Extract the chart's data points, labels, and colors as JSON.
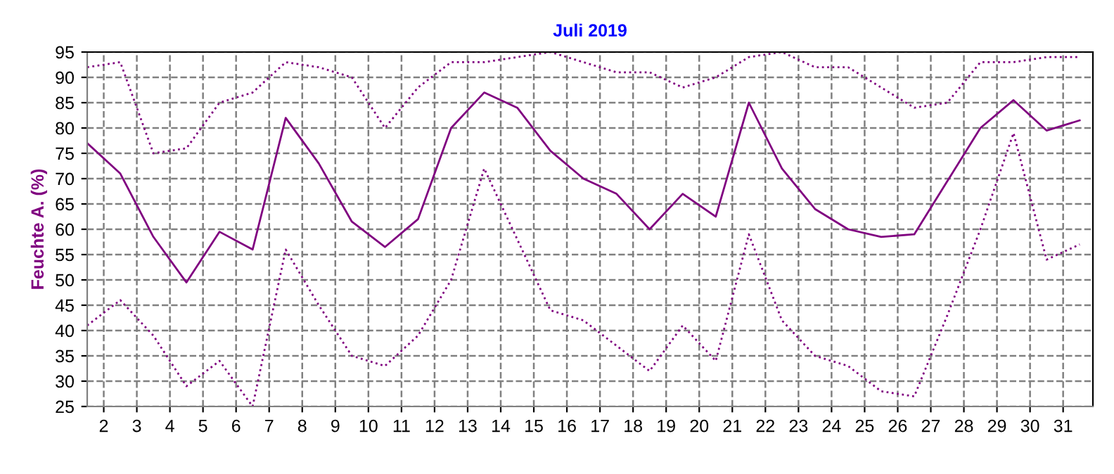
{
  "chart_data": {
    "type": "line",
    "title": "Juli 2019",
    "ylabel": "Feuchte A. (%)",
    "x": [
      1.5,
      2.5,
      3.5,
      4.5,
      5.5,
      6.5,
      7.5,
      8.5,
      9.5,
      10.5,
      11.5,
      12.5,
      13.5,
      14.5,
      15.5,
      16.5,
      17.5,
      18.5,
      19.5,
      20.5,
      21.5,
      22.5,
      23.5,
      24.5,
      25.5,
      26.5,
      27.5,
      28.5,
      29.5,
      30.5,
      31.5
    ],
    "series": [
      {
        "color": "#800080",
        "line_style": "dotted",
        "values": [
          92,
          93,
          75,
          76,
          85,
          87,
          93,
          92,
          90,
          80,
          88,
          93,
          93,
          94,
          95,
          93,
          91,
          91,
          88,
          90,
          94,
          95,
          92,
          92,
          88,
          84,
          85,
          93,
          93,
          94,
          94
        ]
      },
      {
        "color": "#800080",
        "line_style": "solid",
        "values": [
          77,
          71,
          58.5,
          49.5,
          59.5,
          56,
          82,
          73,
          61.5,
          56.5,
          62,
          80,
          87,
          84,
          75.5,
          70,
          67,
          60,
          67,
          62.5,
          85,
          72,
          64,
          60,
          58.5,
          59,
          69.5,
          80,
          85.5,
          79.5,
          81.5
        ]
      },
      {
        "color": "#800080",
        "line_style": "dotted",
        "values": [
          41,
          46,
          39,
          29,
          34,
          25,
          56,
          45,
          35,
          33,
          39,
          50,
          72,
          58,
          44,
          42,
          37,
          32,
          41,
          34,
          59,
          42,
          35,
          33,
          28,
          27,
          43,
          60,
          79,
          54,
          57
        ]
      }
    ],
    "xlim": [
      1.5,
      31.9
    ],
    "ylim": [
      25,
      95
    ],
    "xticks": [
      2,
      3,
      4,
      5,
      6,
      7,
      8,
      9,
      10,
      11,
      12,
      13,
      14,
      15,
      16,
      17,
      18,
      19,
      20,
      21,
      22,
      23,
      24,
      25,
      26,
      27,
      28,
      29,
      30,
      31
    ],
    "yticks": [
      25,
      30,
      35,
      40,
      45,
      50,
      55,
      60,
      65,
      70,
      75,
      80,
      85,
      90,
      95
    ],
    "grid": true,
    "legend": false,
    "marker": "none"
  }
}
